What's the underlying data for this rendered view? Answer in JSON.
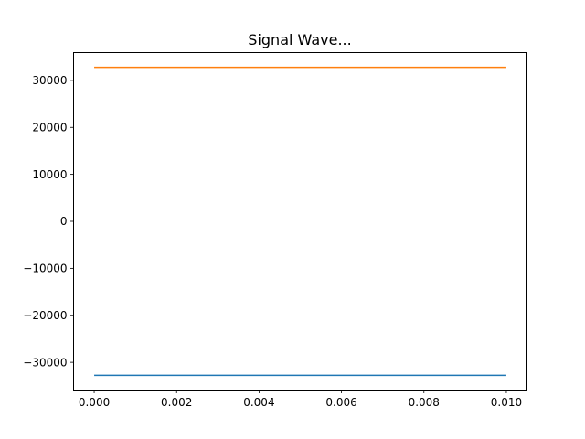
{
  "chart_data": {
    "type": "line",
    "title": "Signal Wave...",
    "xlabel": "",
    "ylabel": "",
    "xlim": [
      -0.0005,
      0.0105
    ],
    "ylim": [
      -35913,
      35913
    ],
    "grid": false,
    "x_ticks": [
      0.0,
      0.002,
      0.004,
      0.006,
      0.008,
      0.01
    ],
    "x_tick_labels": [
      "0.000",
      "0.002",
      "0.004",
      "0.006",
      "0.008",
      "0.010"
    ],
    "y_ticks": [
      -30000,
      -20000,
      -10000,
      0,
      10000,
      20000,
      30000
    ],
    "y_tick_labels": [
      "−30000",
      "−20000",
      "−10000",
      "0",
      "10000",
      "20000",
      "30000"
    ],
    "series": [
      {
        "x": [
          0.0,
          0.01
        ],
        "values": [
          -32767,
          -32767
        ],
        "color": "#1f77b4"
      },
      {
        "x": [
          0.0,
          0.01
        ],
        "values": [
          32767,
          32767
        ],
        "color": "#ff7f0e"
      }
    ]
  }
}
